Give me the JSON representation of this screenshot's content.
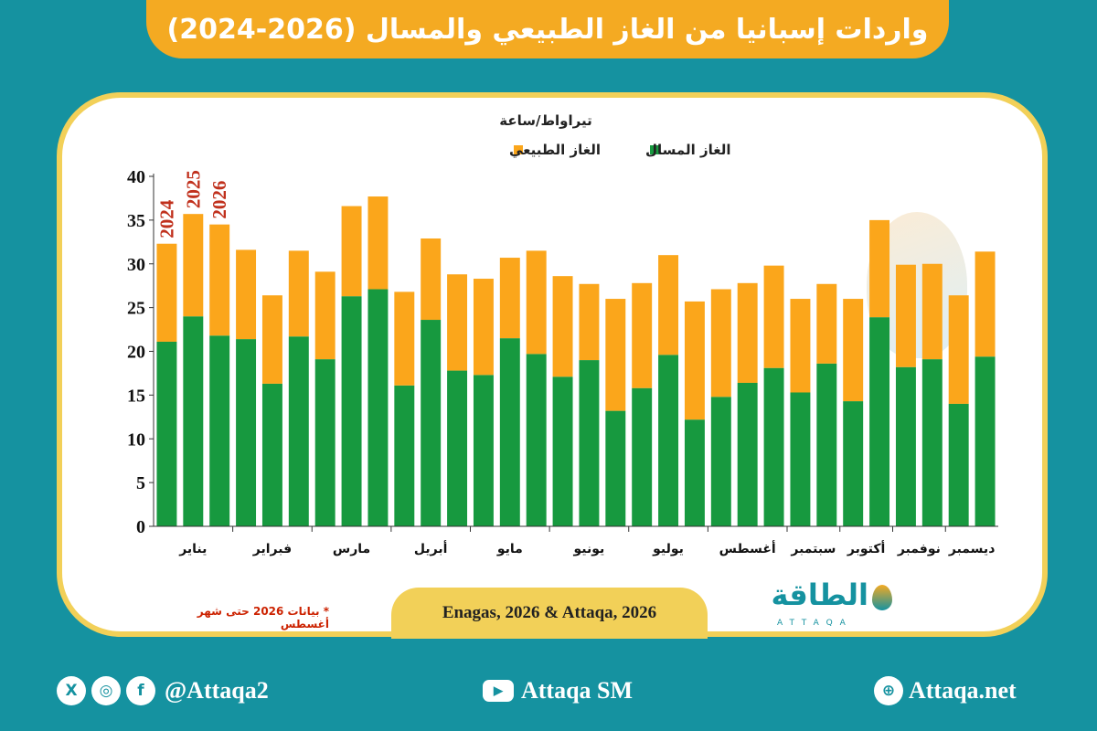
{
  "title": "واردات إسبانيا من الغاز الطبيعي والمسال (2026-2024)",
  "source": "Enagas, 2026 & Attaqa, 2026",
  "note": "*  بيانات 2026 حتى شهر أغسطس",
  "logo": {
    "text": "الطاقة",
    "sub": "ATTAQA"
  },
  "footer": {
    "social": "@Attaqa2",
    "youtube": "Attaqa SM",
    "website": "Attaqa.net",
    "icons": [
      "x-icon",
      "instagram-icon",
      "facebook-icon",
      "youtube-icon",
      "globe-icon"
    ]
  },
  "colors": {
    "lng": "#17993f",
    "gas": "#fba61b",
    "year_label": "#c0301c"
  },
  "chart_data": {
    "type": "bar",
    "stacked": true,
    "unit_label": "تيراواط/ساعة",
    "ylim": [
      0,
      40
    ],
    "yticks": [
      0,
      5,
      10,
      15,
      20,
      25,
      30,
      35,
      40
    ],
    "legend_placement": "top-center",
    "series": [
      {
        "name": "الغاز المسال",
        "color": "#17993f",
        "values": [
          21.1,
          24,
          21.8,
          21.4,
          16.3,
          21.7,
          19.1,
          26.3,
          27.1,
          16.1,
          23.6,
          17.8,
          17.3,
          21.5,
          19.7,
          17.1,
          19,
          13.2,
          15.8,
          19.6,
          12.2,
          14.8,
          16.4,
          18.1,
          15.3,
          18.6,
          14.3,
          23.9,
          18.2,
          19.1,
          14,
          19.4
        ]
      },
      {
        "name": "الغاز الطبيعي",
        "color": "#fba61b",
        "values": [
          11.2,
          11.7,
          12.7,
          10.2,
          10.1,
          9.8,
          10,
          10.3,
          10.6,
          10.7,
          9.3,
          11,
          11,
          9.2,
          11.8,
          11.5,
          8.7,
          12.8,
          12,
          11.4,
          13.5,
          12.3,
          11.4,
          11.7,
          10.7,
          9.1,
          11.7,
          11.1,
          11.7,
          10.9,
          12.4,
          12
        ]
      }
    ],
    "groups": [
      {
        "label": "يناير",
        "bars": 3
      },
      {
        "label": "فبراير",
        "bars": 3
      },
      {
        "label": "مارس",
        "bars": 3
      },
      {
        "label": "أبريل",
        "bars": 3
      },
      {
        "label": "مايو",
        "bars": 3
      },
      {
        "label": "يونيو",
        "bars": 3
      },
      {
        "label": "يوليو",
        "bars": 3
      },
      {
        "label": "أغسطس",
        "bars": 3
      },
      {
        "label": "سبتمبر",
        "bars": 2
      },
      {
        "label": "أكتوبر",
        "bars": 2
      },
      {
        "label": "نوفمبر",
        "bars": 2
      },
      {
        "label": "ديسمبر",
        "bars": 2
      }
    ],
    "year_labels": [
      "2024",
      "2025",
      "2026"
    ]
  }
}
